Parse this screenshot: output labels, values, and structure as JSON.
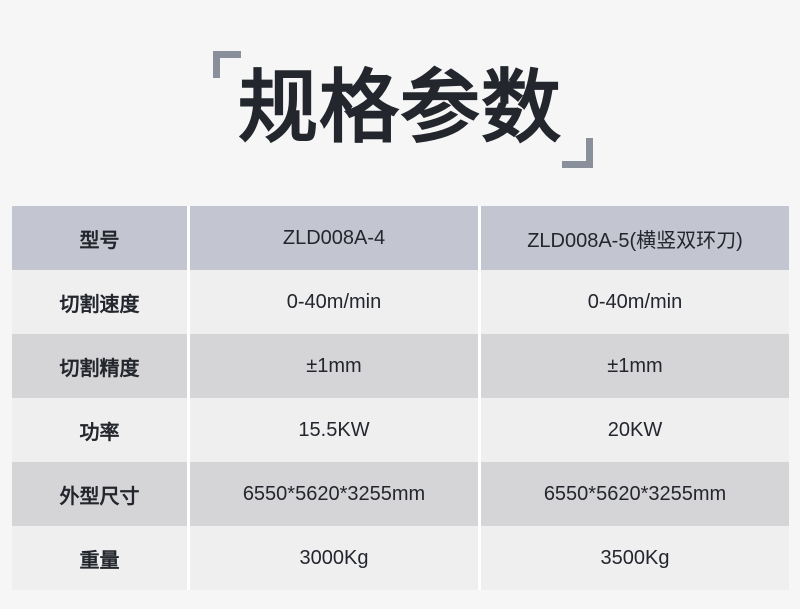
{
  "title": {
    "text": "规格参数"
  },
  "colors": {
    "page_background": "#f6f6f7",
    "title_text": "#23262c",
    "bracket": "#8a909b",
    "table_header_bg": "#c3c6d1",
    "row_light_bg": "#efeff0",
    "row_dark_bg": "#d5d5d7",
    "divider": "#ffffff",
    "table_text": "#23262c"
  },
  "table": {
    "rows": [
      {
        "label": "型号",
        "values": [
          "ZLD008A-4",
          "ZLD008A-5(横竖双环刀)"
        ]
      },
      {
        "label": "切割速度",
        "values": [
          "0-40m/min",
          "0-40m/min"
        ]
      },
      {
        "label": "切割精度",
        "values": [
          "±1mm",
          "±1mm"
        ]
      },
      {
        "label": "功率",
        "values": [
          "15.5KW",
          "20KW"
        ]
      },
      {
        "label": "外型尺寸",
        "values": [
          "6550*5620*3255mm",
          "6550*5620*3255mm"
        ]
      },
      {
        "label": "重量",
        "values": [
          "3000Kg",
          "3500Kg"
        ]
      }
    ]
  }
}
